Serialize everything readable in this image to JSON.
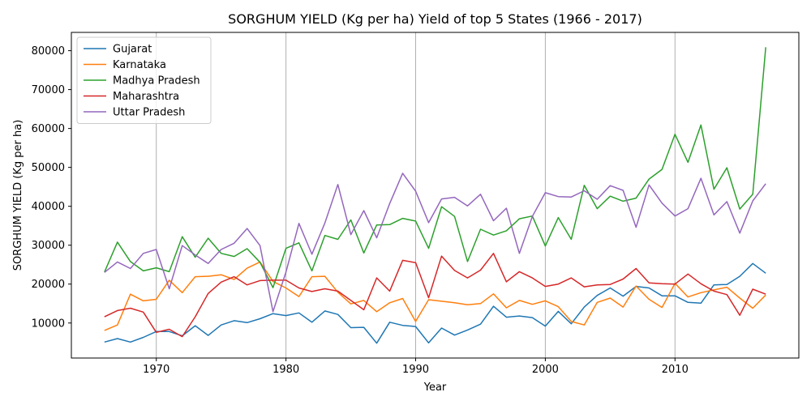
{
  "chart_data": {
    "type": "line",
    "title": "SORGHUM YIELD (Kg per ha) Yield of top 5 States (1966 - 2017)",
    "xlabel": "Year",
    "ylabel": "SORGHUM YIELD (Kg per ha)",
    "xlim": [
      1963.45,
      2019.55
    ],
    "ylim": [
      1000,
      84700
    ],
    "xticks": [
      1970,
      1980,
      1990,
      2000,
      2010
    ],
    "yticks": [
      10000,
      20000,
      30000,
      40000,
      50000,
      60000,
      70000,
      80000
    ],
    "grid": "x-major",
    "legend": "top-left",
    "x": [
      1966,
      1967,
      1968,
      1969,
      1970,
      1971,
      1972,
      1973,
      1974,
      1975,
      1976,
      1977,
      1978,
      1979,
      1980,
      1981,
      1982,
      1983,
      1984,
      1985,
      1986,
      1987,
      1988,
      1989,
      1990,
      1991,
      1992,
      1993,
      1994,
      1995,
      1996,
      1997,
      1998,
      1999,
      2000,
      2001,
      2002,
      2003,
      2004,
      2005,
      2006,
      2007,
      2008,
      2009,
      2010,
      2011,
      2012,
      2013,
      2014,
      2015,
      2016,
      2017
    ],
    "series": [
      {
        "name": "Gujarat",
        "color": "#1f77b4",
        "values": [
          5100,
          6000,
          5100,
          6300,
          7800,
          7800,
          6700,
          9300,
          6800,
          9500,
          10600,
          10100,
          11100,
          12400,
          11900,
          12600,
          10200,
          13100,
          12200,
          8800,
          8900,
          4800,
          10200,
          9400,
          9100,
          4900,
          8700,
          6900,
          8200,
          9700,
          14300,
          11500,
          11800,
          11400,
          9200,
          13000,
          9800,
          14100,
          17100,
          19000,
          16900,
          19400,
          19000,
          17000,
          17000,
          15300,
          15100,
          19800,
          19900,
          22000,
          25300,
          22800
        ]
      },
      {
        "name": "Karnataka",
        "color": "#ff7f0e",
        "values": [
          8100,
          9500,
          17400,
          15700,
          16100,
          21000,
          17800,
          21900,
          22000,
          22400,
          21200,
          24100,
          25700,
          20700,
          19000,
          16800,
          21900,
          22000,
          17900,
          14900,
          15800,
          12900,
          15200,
          16300,
          10400,
          16000,
          15600,
          15200,
          14700,
          15000,
          17500,
          13900,
          15800,
          14800,
          15700,
          14200,
          10400,
          9500,
          15300,
          16400,
          14100,
          19500,
          16100,
          14000,
          20200,
          16700,
          17800,
          18500,
          19200,
          16400,
          13800,
          17200
        ]
      },
      {
        "name": "Madhya Pradesh",
        "color": "#2ca02c",
        "values": [
          23100,
          30800,
          25800,
          23400,
          24200,
          23200,
          32200,
          26900,
          31800,
          27900,
          27100,
          29100,
          25600,
          19100,
          29200,
          30600,
          23400,
          32500,
          31500,
          36500,
          28000,
          35200,
          35300,
          36900,
          36200,
          29200,
          39900,
          37400,
          25800,
          34100,
          32600,
          33700,
          36800,
          37500,
          29800,
          37100,
          31500,
          45400,
          39400,
          42600,
          41300,
          42100,
          47000,
          49500,
          58500,
          51300,
          60900,
          44400,
          49900,
          39300,
          43100,
          80900
        ]
      },
      {
        "name": "Maharashtra",
        "color": "#d62728",
        "values": [
          11600,
          13200,
          13800,
          12800,
          7600,
          8400,
          6500,
          11600,
          17600,
          20500,
          21900,
          19800,
          20900,
          21000,
          21000,
          19000,
          18100,
          18800,
          18200,
          15800,
          13400,
          21600,
          18200,
          26100,
          25500,
          16500,
          27200,
          23500,
          21600,
          23600,
          27900,
          20600,
          23200,
          21600,
          19400,
          20000,
          21600,
          19300,
          19800,
          19900,
          21300,
          24000,
          20300,
          20100,
          20000,
          22600,
          20100,
          18200,
          17300,
          12000,
          18700,
          17400
        ]
      },
      {
        "name": "Uttar Pradesh",
        "color": "#9467bd",
        "values": [
          23000,
          25700,
          24000,
          27900,
          28900,
          18800,
          29900,
          27500,
          25300,
          28900,
          30500,
          34300,
          29900,
          12900,
          23100,
          35600,
          27700,
          35700,
          45600,
          32700,
          38900,
          31900,
          40700,
          48500,
          43900,
          35800,
          41900,
          42300,
          40100,
          43100,
          36300,
          39500,
          27900,
          37400,
          43500,
          42500,
          42400,
          44000,
          41800,
          45300,
          44100,
          34600,
          45500,
          40800,
          37500,
          39400,
          47200,
          37800,
          41200,
          33100,
          41400,
          45800
        ]
      }
    ]
  }
}
